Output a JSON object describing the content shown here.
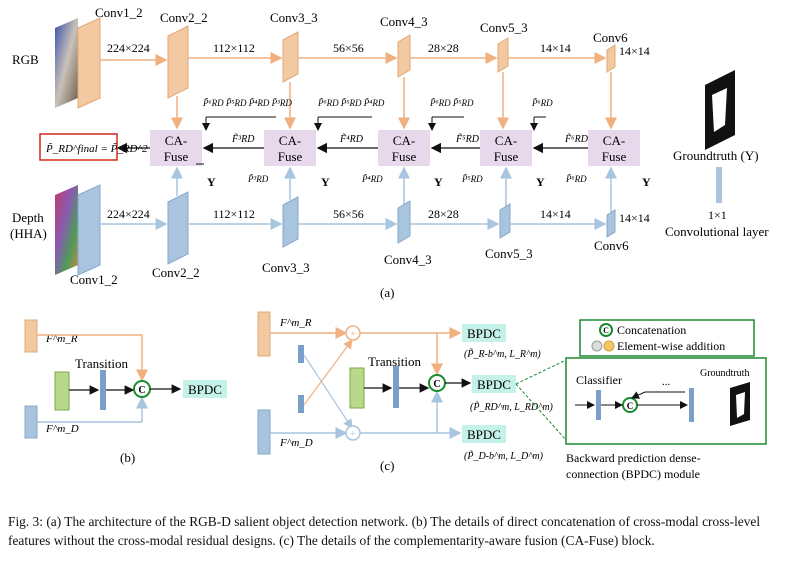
{
  "figure": {
    "panel_a": {
      "stages": [
        "Conv1_2",
        "Conv2_2",
        "Conv3_3",
        "Conv4_3",
        "Conv5_3",
        "Conv6"
      ],
      "input_rgb": "RGB",
      "input_depth_line1": "Depth",
      "input_depth_line2": "(HHA)",
      "sizes": [
        "224×224",
        "112×112",
        "56×56",
        "28×28",
        "14×14",
        "14×14"
      ],
      "fuse_label_top": "CA-",
      "fuse_label_bottom": "Fuse",
      "final_output": "P̃_RD^final = P̃_RD^2",
      "gt_symbol": "Y",
      "legend_groundtruth": "Groundtruth (Y)",
      "legend_conv_line1": "1×1",
      "legend_conv_line2": "Convolutional layer",
      "panel_label": "(a)"
    },
    "panel_b": {
      "transition": "Transition",
      "bpdc": "BPDC",
      "panel_label": "(b)"
    },
    "panel_c": {
      "transition": "Transition",
      "bpdc": "BPDC",
      "outputs": [
        "(P̃_R-b^m, L_R^m)",
        "(P̃_RD^m, L_RD^m)",
        "(P̃_D-b^m, L_D^m)"
      ],
      "panel_label": "(c)"
    },
    "legend": {
      "concat": "Concatenation",
      "add": "Element-wise addition"
    },
    "bpdc_detail": {
      "classifier": "Classifier",
      "groundtruth": "Groundtruth",
      "ellipsis": "...",
      "caption_line1": "Backward prediction dense-",
      "caption_line2": "connection (BPDC) module"
    }
  },
  "caption": "Fig. 3: (a) The architecture of the RGB-D salient object detection network. (b) The details of direct concatenation of cross-modal cross-level features without the cross-modal residual designs. (c) The details of the complementarity-aware fusion (CA-Fuse) block.",
  "colors": {
    "rgb_block": "#f3c9a2",
    "depth_block": "#a9c4df",
    "fuse_box": "#e8d8ec",
    "bpdc_box": "#c4f1e8",
    "green_border": "#1a8a2e",
    "red_border": "#d22a1c",
    "orange_line": "#f0b080",
    "blue_line": "#a9c4df"
  }
}
